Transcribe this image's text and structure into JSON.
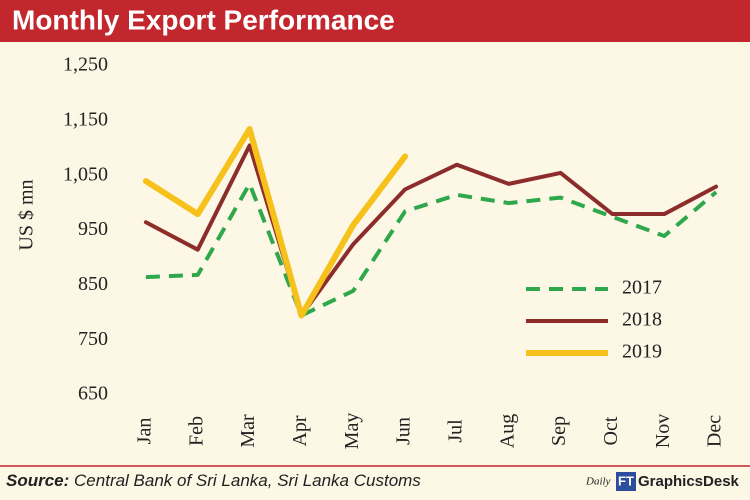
{
  "chart_data": {
    "type": "line",
    "title": "Monthly Export Performance",
    "y_label": "US $ mn",
    "categories": [
      "Jan",
      "Feb",
      "Mar",
      "Apr",
      "May",
      "Jun",
      "Jul",
      "Aug",
      "Sep",
      "Oct",
      "Nov",
      "Dec"
    ],
    "series": [
      {
        "name": "2017",
        "color": "#2ea84b",
        "dash": true,
        "values": [
          865,
          869,
          1035,
          795,
          840,
          985,
          1015,
          1000,
          1010,
          975,
          940,
          1020
        ]
      },
      {
        "name": "2018",
        "color": "#8c2d2b",
        "dash": false,
        "values": [
          965,
          915,
          1105,
          795,
          925,
          1025,
          1070,
          1035,
          1055,
          980,
          980,
          1030
        ]
      },
      {
        "name": "2019",
        "color": "#f6c11a",
        "dash": false,
        "values": [
          1040,
          980,
          1135,
          795,
          960,
          1085,
          null,
          null,
          null,
          null,
          null,
          null
        ]
      }
    ],
    "ylim": [
      650,
      1250
    ],
    "yticks": [
      650,
      750,
      850,
      950,
      {
        "value": 1050,
        "label": "1,050"
      },
      {
        "value": 1150,
        "label": "1,150"
      },
      {
        "value": 1250,
        "label": "1,250"
      }
    ],
    "grid": false,
    "legend": "lower-right",
    "source_label": "Source:",
    "source_text": "Central Bank of Sri Lanka, Sri Lanka Customs",
    "logo_daily": "Daily",
    "logo_ft": "FT",
    "logo_desk": "GraphicsDesk"
  }
}
